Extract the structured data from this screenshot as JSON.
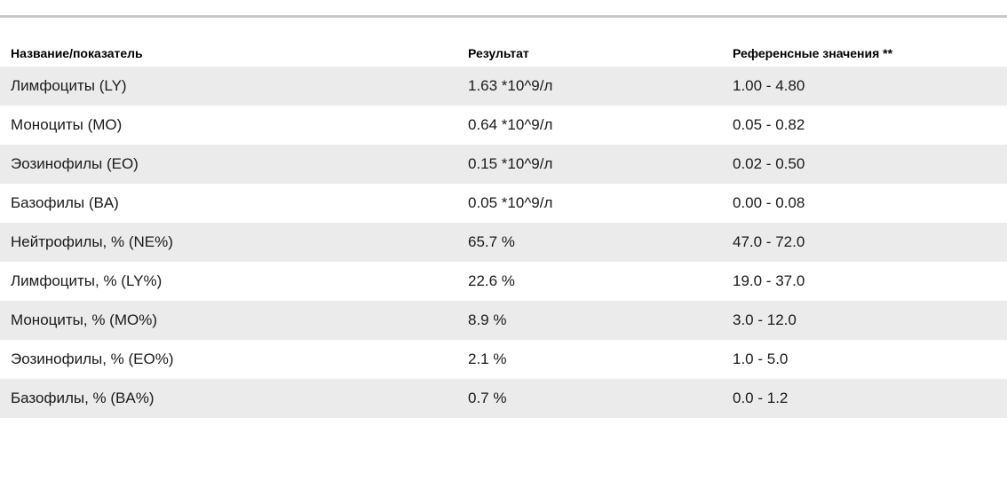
{
  "page": {
    "background_color": "#ffffff",
    "divider_color": "#c9c9c9",
    "row_stripe_color": "#ebebeb",
    "header_text_color": "#000000",
    "body_text_color": "#1a1a1a"
  },
  "table": {
    "columns": [
      {
        "label": "Название/показатель"
      },
      {
        "label": "Результат"
      },
      {
        "label": "Референсные значения **"
      }
    ],
    "rows": [
      {
        "name": "Лимфоциты (LY)",
        "result": "1.63 *10^9/л",
        "reference": "1.00 - 4.80"
      },
      {
        "name": "Моноциты (MO)",
        "result": "0.64 *10^9/л",
        "reference": "0.05 - 0.82"
      },
      {
        "name": "Эозинофилы (EO)",
        "result": "0.15 *10^9/л",
        "reference": "0.02 - 0.50"
      },
      {
        "name": "Базофилы (BA)",
        "result": "0.05 *10^9/л",
        "reference": "0.00 - 0.08"
      },
      {
        "name": "Нейтрофилы, % (NE%)",
        "result": "65.7 %",
        "reference": "47.0 - 72.0"
      },
      {
        "name": "Лимфоциты, % (LY%)",
        "result": "22.6 %",
        "reference": "19.0 - 37.0"
      },
      {
        "name": "Моноциты, % (MO%)",
        "result": "8.9 %",
        "reference": "3.0 - 12.0"
      },
      {
        "name": "Эозинофилы, % (EO%)",
        "result": "2.1 %",
        "reference": "1.0 - 5.0"
      },
      {
        "name": "Базофилы, % (BA%)",
        "result": "0.7 %",
        "reference": "0.0 - 1.2"
      }
    ]
  }
}
